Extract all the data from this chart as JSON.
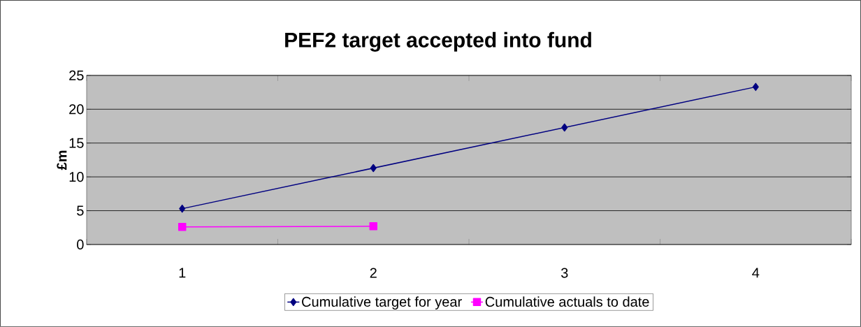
{
  "chart_data": {
    "type": "line",
    "title": "PEF2 target accepted into fund",
    "ylabel": "£m",
    "categories": [
      "1",
      "2",
      "3",
      "4"
    ],
    "series": [
      {
        "name": "Cumulative target for year",
        "color": "#000080",
        "marker": "diamond",
        "values": [
          5.3,
          11.3,
          17.3,
          23.3
        ]
      },
      {
        "name": "Cumulative actuals to date",
        "color": "#ff00ff",
        "marker": "square",
        "values": [
          2.6,
          2.7,
          null,
          null
        ]
      }
    ],
    "ylim": [
      0,
      25
    ],
    "yticks": [
      0,
      5,
      10,
      15,
      20,
      25
    ],
    "grid": "y",
    "legend": "bottom",
    "line_style": "solid"
  }
}
